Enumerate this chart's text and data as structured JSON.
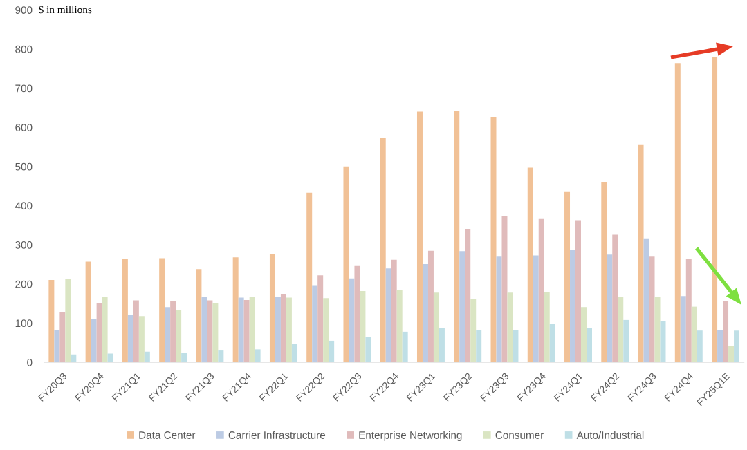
{
  "chart_data": {
    "type": "bar",
    "ylabel": "$ in millions",
    "categories": [
      "FY20Q3",
      "FY20Q4",
      "FY21Q1",
      "FY21Q2",
      "FY21Q3",
      "FY21Q4",
      "FY22Q1",
      "FY22Q2",
      "FY22Q3",
      "FY22Q4",
      "FY23Q1",
      "FY23Q2",
      "FY23Q3",
      "FY23Q4",
      "FY24Q1",
      "FY24Q2",
      "FY24Q3",
      "FY24Q4",
      "FY25Q1E"
    ],
    "series": [
      {
        "name": "Data Center",
        "color": "#f1c196",
        "values": [
          210,
          257,
          265,
          266,
          238,
          268,
          276,
          433,
          500,
          574,
          640,
          643,
          627,
          497,
          435,
          459,
          555,
          764,
          779
        ]
      },
      {
        "name": "Carrier Infrastructure",
        "color": "#bccbe4",
        "values": [
          83,
          111,
          121,
          141,
          167,
          165,
          166,
          195,
          214,
          240,
          251,
          284,
          270,
          273,
          288,
          275,
          315,
          169,
          83
        ]
      },
      {
        "name": "Enterprise Networking",
        "color": "#e0bbbb",
        "values": [
          129,
          152,
          158,
          156,
          158,
          159,
          174,
          222,
          246,
          262,
          285,
          339,
          374,
          366,
          363,
          326,
          270,
          263,
          157
        ]
      },
      {
        "name": "Consumer",
        "color": "#dae5c3",
        "values": [
          213,
          166,
          118,
          134,
          152,
          166,
          165,
          164,
          182,
          184,
          178,
          162,
          178,
          180,
          141,
          166,
          167,
          142,
          42
        ]
      },
      {
        "name": "Auto/Industrial",
        "color": "#bfdfe6",
        "values": [
          20,
          22,
          27,
          24,
          30,
          33,
          46,
          55,
          65,
          78,
          88,
          82,
          83,
          98,
          88,
          108,
          105,
          81,
          81
        ]
      }
    ],
    "ylim": [
      0,
      900
    ],
    "yticks": [
      0,
      100,
      200,
      300,
      400,
      500,
      600,
      700,
      800,
      900
    ],
    "grid": false,
    "legend": "bottom"
  }
}
